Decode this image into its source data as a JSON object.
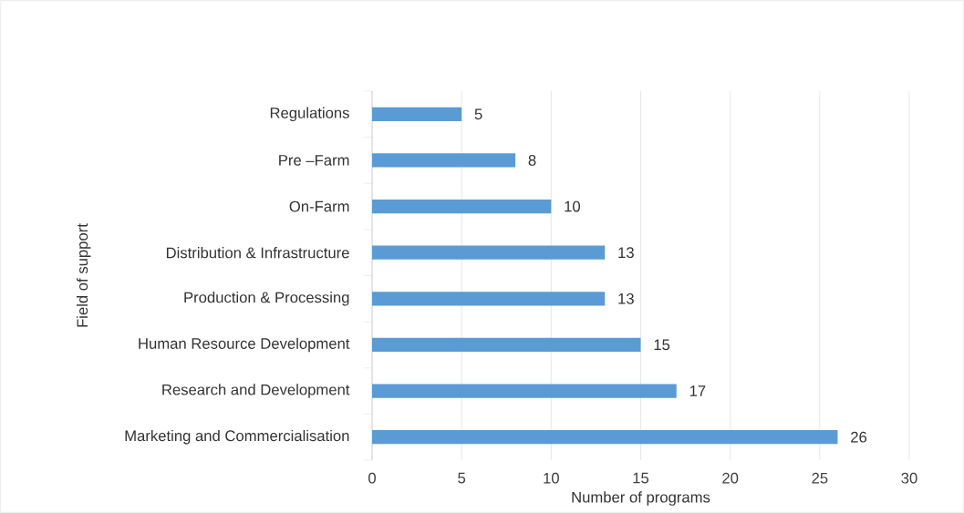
{
  "chart_data": {
    "type": "bar",
    "orientation": "horizontal",
    "xlabel": "Number of programs",
    "ylabel": "Field of support",
    "categories": [
      "Regulations",
      "Pre –Farm",
      "On-Farm",
      "Distribution & Infrastructure",
      "Production & Processing",
      "Human Resource Development",
      "Research and Development",
      "Marketing and Commercialisation"
    ],
    "values": [
      5,
      8,
      10,
      13,
      13,
      15,
      17,
      26
    ],
    "color": "#5b9bd5",
    "xlim": [
      0,
      30
    ],
    "xticks": [
      0,
      5,
      10,
      15,
      20,
      25,
      30
    ],
    "grid": "x",
    "data_labels": true
  }
}
